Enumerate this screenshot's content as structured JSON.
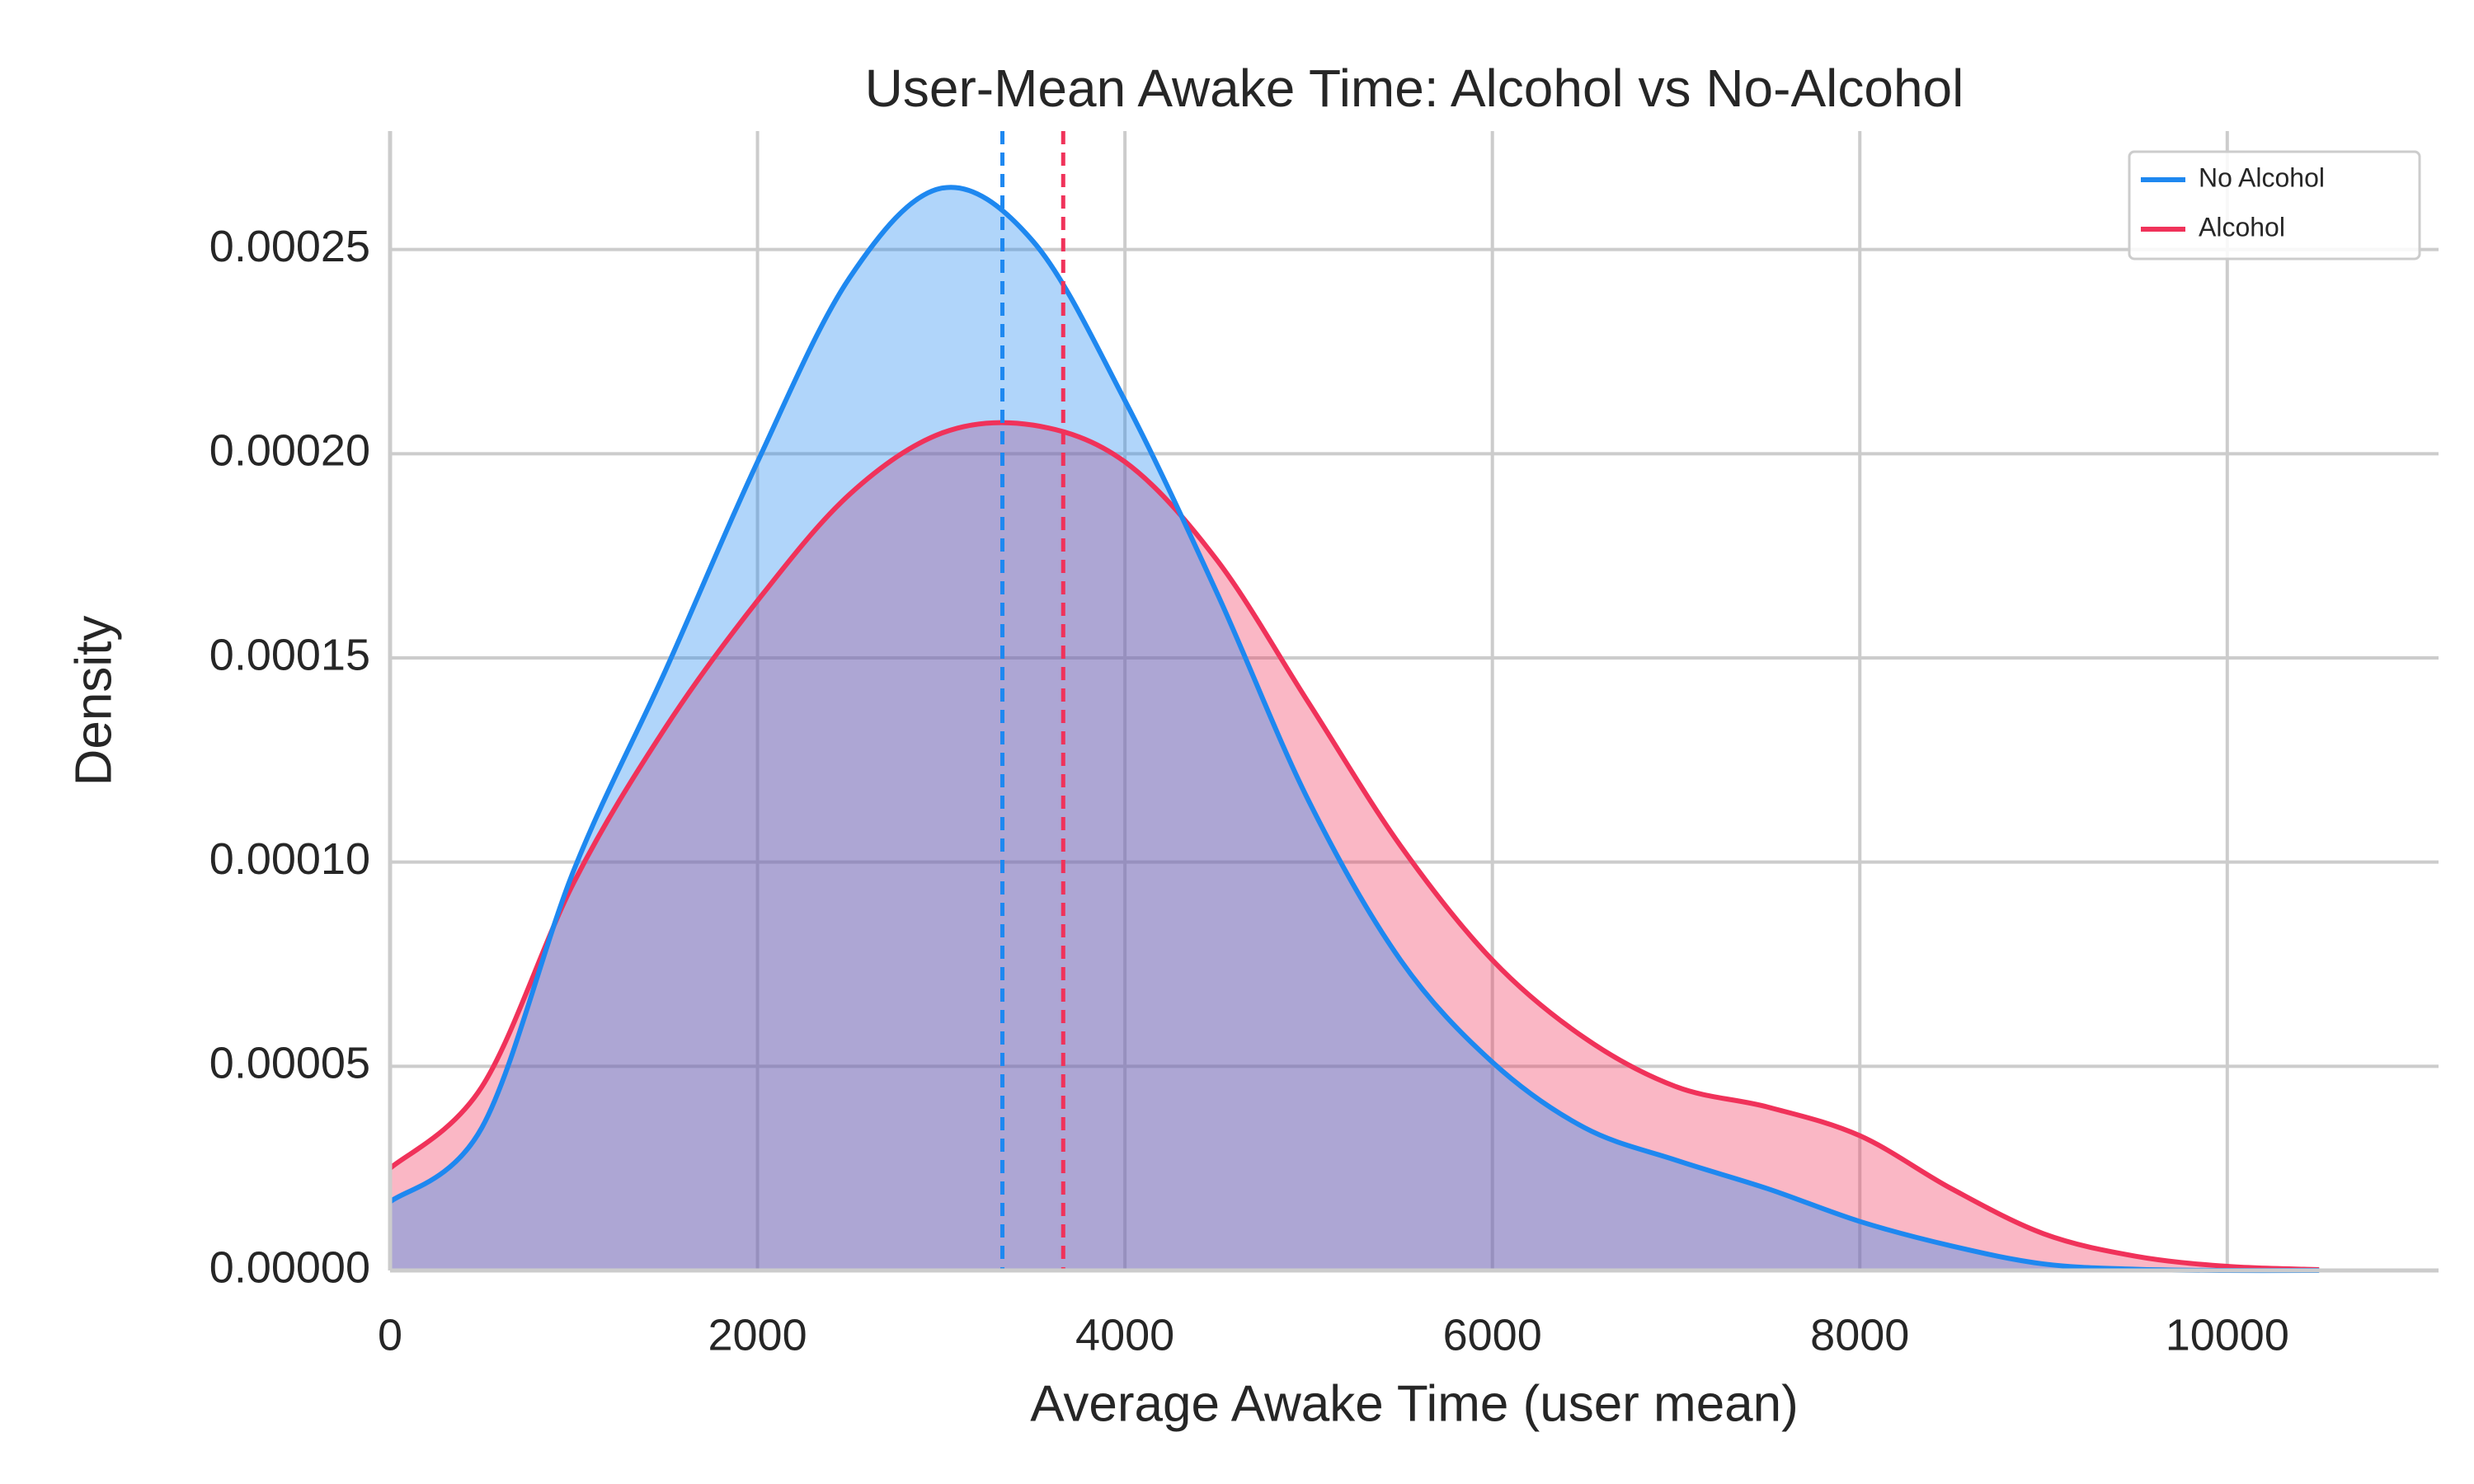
{
  "chart_data": {
    "type": "kde",
    "title": "User-Mean Awake Time: Alcohol vs No-Alcohol",
    "x_label": "Average Awake Time (user mean)",
    "y_label": "Density",
    "x": [
      0,
      500,
      1000,
      1500,
      2000,
      2500,
      3000,
      3500,
      4000,
      4500,
      5000,
      5500,
      6000,
      6500,
      7000,
      7500,
      8000,
      8500,
      9000,
      9500,
      10000,
      10500
    ],
    "series": [
      {
        "name": "No Alcohol",
        "color": "#1e88f0",
        "mean": 3333,
        "values": [
          1.68e-05,
          3.5e-05,
          9.8e-05,
          0.000147,
          0.000198,
          0.000243,
          0.000265,
          0.000252,
          0.000213,
          0.000166,
          0.000115,
          7.6e-05,
          5.1e-05,
          3.5e-05,
          2.7e-05,
          2e-05,
          1.2e-05,
          6e-06,
          1.6e-06,
          3e-07,
          0,
          0
        ]
      },
      {
        "name": "Alcohol",
        "color": "#f0325a",
        "mean": 3664,
        "values": [
          2.5e-05,
          4.5e-05,
          9.5e-05,
          0.000133,
          0.000164,
          0.00019,
          0.000205,
          0.000207,
          0.000198,
          0.000174,
          0.000139,
          0.000104,
          7.6e-05,
          5.7e-05,
          4.5e-05,
          4e-05,
          3.3e-05,
          2e-05,
          9e-06,
          3.5e-06,
          1e-06,
          2e-07
        ]
      }
    ],
    "xlim": [
      0,
      11150
    ],
    "ylim": [
      0,
      0.000279
    ],
    "xticks": [
      0,
      2000,
      4000,
      6000,
      8000,
      10000
    ],
    "yticks": [
      {
        "value": 0,
        "label": "0.00000"
      },
      5e-05,
      {
        "value": 0.0001,
        "label": "0.00010"
      },
      0.00015,
      {
        "value": 0.0002,
        "label": "0.00020"
      },
      0.00025
    ],
    "grid": true,
    "legend": "upper right"
  }
}
